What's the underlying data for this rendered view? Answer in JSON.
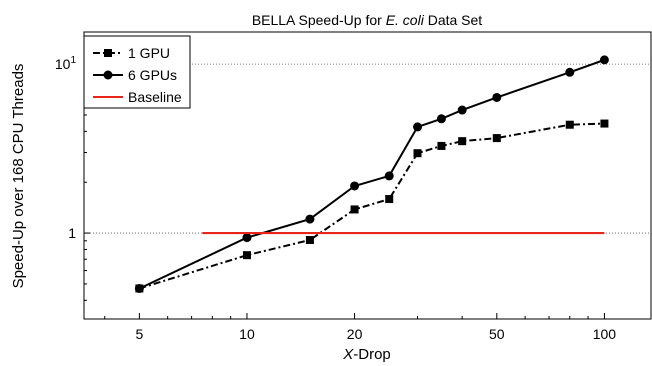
{
  "chart_data": {
    "type": "line",
    "title_prefix": "BELLA Speed-Up for ",
    "title_italic": "E. coli",
    "title_suffix": " Data Set",
    "xlabel_italic": "X",
    "xlabel_rest": "-Drop",
    "ylabel": "Speed-Up over 168 CPU Threads",
    "x_scale": "log",
    "y_scale": "log",
    "xlim": [
      3.5,
      135
    ],
    "ylim": [
      0.31,
      15.5
    ],
    "x_ticks": [
      5,
      10,
      20,
      50,
      100
    ],
    "x_tick_labels": [
      "5",
      "10",
      "20",
      "50",
      "100"
    ],
    "y_ticks": [
      1,
      10
    ],
    "y_tick_labels": [
      "1",
      "10"
    ],
    "y_tick_exponent": "1",
    "gridlines_y": [
      1,
      10
    ],
    "legend_position": "top-left",
    "series": [
      {
        "name": "1 GPU",
        "color": "#000000",
        "line_style": "dash-dot",
        "marker": "square",
        "x": [
          5,
          10,
          15,
          20,
          25,
          30,
          35,
          40,
          50,
          80,
          100
        ],
        "y": [
          0.47,
          0.74,
          0.91,
          1.38,
          1.59,
          2.97,
          3.28,
          3.5,
          3.65,
          4.38,
          4.45
        ]
      },
      {
        "name": "6 GPUs",
        "color": "#000000",
        "line_style": "solid",
        "marker": "circle",
        "x": [
          5,
          10,
          15,
          20,
          25,
          30,
          35,
          40,
          50,
          80,
          100
        ],
        "y": [
          0.47,
          0.94,
          1.21,
          1.9,
          2.18,
          4.25,
          4.75,
          5.35,
          6.35,
          8.95,
          10.6
        ]
      },
      {
        "name": "Baseline",
        "color": "#e8251a",
        "line_style": "solid",
        "marker": "none",
        "x": [
          10,
          100
        ],
        "y": [
          1,
          1
        ],
        "x_span_start": 7.5
      }
    ]
  }
}
